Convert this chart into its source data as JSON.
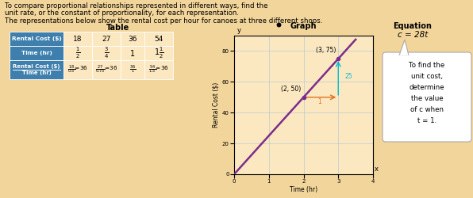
{
  "bg_color": "#f2d59a",
  "title_line1": "To compare proportional relationships represented in different ways, find the",
  "title_line2": "unit rate, or the constant of proportionality, for each representation.",
  "title_line3": "The representations below show the rental cost per hour for canoes at three different shops.",
  "table_header": "Table",
  "graph_header": "Graph",
  "equation_header": "Equation",
  "equation": "c = 28t",
  "equation_note_lines": [
    "To find the",
    "unit cost,",
    "determine",
    "the value",
    "of c when",
    "t = 1."
  ],
  "table_row1_label": "Rental Cost ($)",
  "table_row2_label": "Time (hr)",
  "table_row3_label_top": "Rental Cost ($)",
  "table_row3_label_bot": "Time (hr)",
  "table_row1_vals": [
    "18",
    "27",
    "36",
    "54"
  ],
  "table_row2_vals": [
    "1/2",
    "3/4",
    "1",
    "1_1/2"
  ],
  "table_row3_vals": [
    "18/0.5=36",
    "27/0.75=36",
    "36/1",
    "54/1.5=36"
  ],
  "header_bg": "#3e7fad",
  "cell_bg": "#fce8c0",
  "graph_bg": "#fce8c0",
  "graph_line_color": "#7b2d8b",
  "graph_points": [
    [
      2,
      50
    ],
    [
      3,
      75
    ]
  ],
  "rise_color": "#00bcd4",
  "run_color": "#e07020",
  "rise_label": "25",
  "run_label": "1",
  "xlabel": "Time (hr)",
  "ylabel": "Rental Cost ($)",
  "xlim": [
    0,
    4
  ],
  "ylim": [
    0,
    90
  ],
  "xticks": [
    0,
    1,
    2,
    3,
    4
  ],
  "yticks": [
    0,
    20,
    40,
    60,
    80
  ],
  "note_box_color": "white",
  "note_border_color": "#aaaaaa",
  "eq_box_color": "white",
  "eq_border_color": "#aaaaaa"
}
